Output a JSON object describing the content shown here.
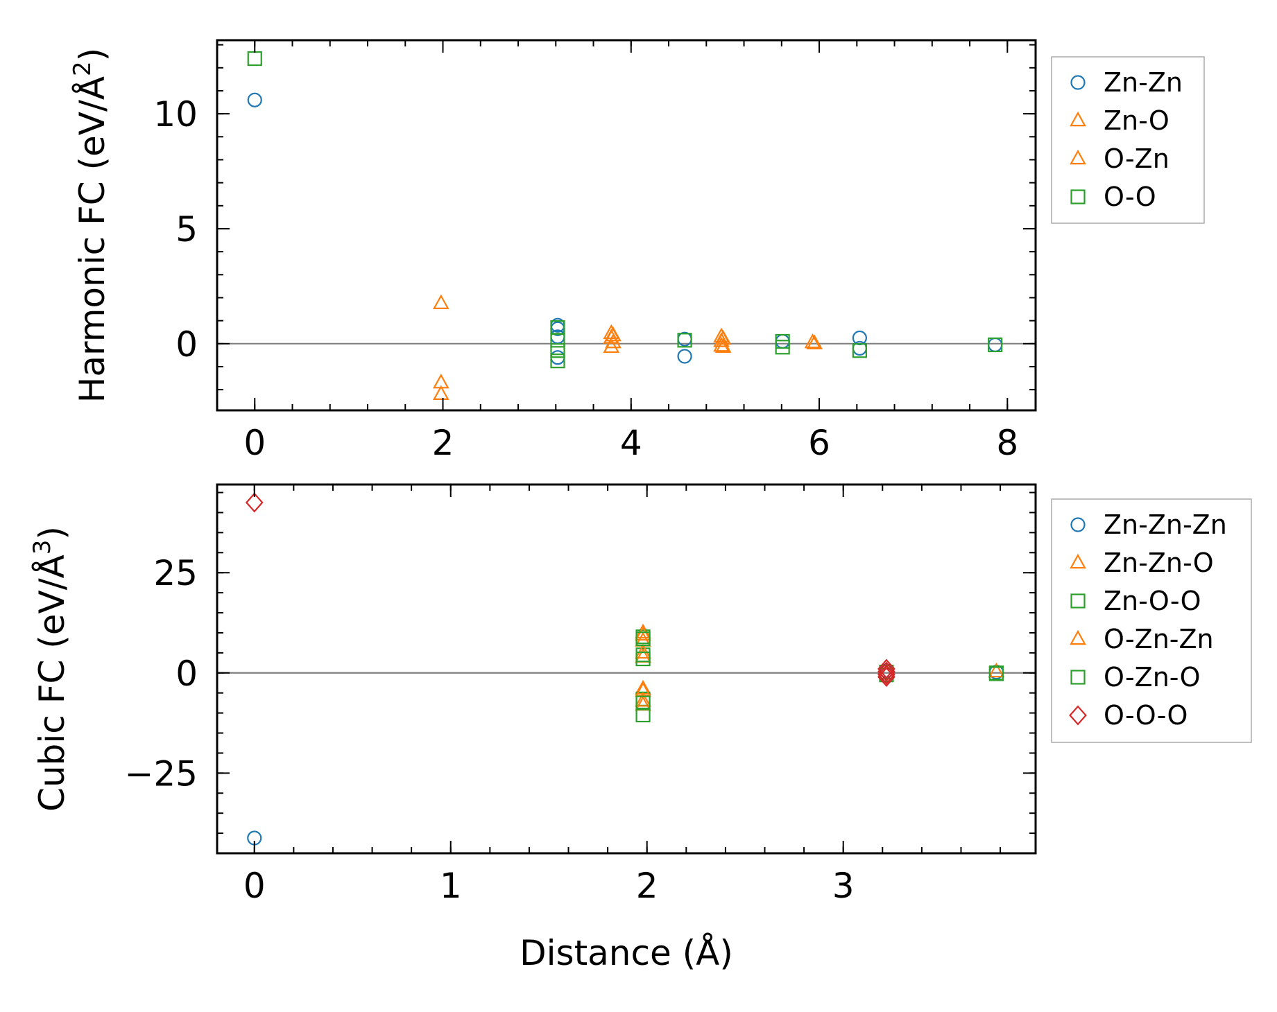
{
  "chart_data": [
    {
      "type": "scatter",
      "ylabel": "Harmonic FC (eV/Å²)",
      "ylabel_main": "Harmonic FC (eV/Å",
      "ylabel_sup": "2",
      "ylabel_tail": ")",
      "xlabel": "",
      "xlim": [
        -0.4,
        8.3
      ],
      "ylim": [
        -2.9,
        13.2
      ],
      "xticks": [
        0,
        2,
        4,
        6,
        8
      ],
      "xtick_labels": [
        "0",
        "2",
        "4",
        "6",
        "8"
      ],
      "yticks": [
        0,
        5,
        10
      ],
      "ytick_labels": [
        "0",
        "5",
        "10"
      ],
      "x_minor_step": 0.4,
      "y_minor_step": 1,
      "zero_line": true,
      "legend": "outside-right",
      "series": [
        {
          "name": "Zn-Zn",
          "marker": "circle",
          "color": "#1f77b4",
          "points": [
            [
              0,
              10.6
            ],
            [
              3.22,
              0.8
            ],
            [
              3.22,
              0.65
            ],
            [
              3.22,
              0.3
            ],
            [
              3.22,
              -0.6
            ],
            [
              4.57,
              0.2
            ],
            [
              4.57,
              -0.55
            ],
            [
              5.61,
              0.1
            ],
            [
              6.43,
              0.25
            ],
            [
              6.43,
              -0.2
            ],
            [
              7.87,
              -0.05
            ]
          ]
        },
        {
          "name": "Zn-O",
          "marker": "triangle",
          "color": "#ff7f0e",
          "points": [
            [
              1.98,
              1.75
            ],
            [
              1.98,
              -1.7
            ],
            [
              1.98,
              -2.2
            ],
            [
              3.79,
              0.45
            ],
            [
              3.79,
              0.25
            ],
            [
              3.79,
              -0.15
            ],
            [
              4.96,
              0.3
            ],
            [
              4.96,
              0.1
            ],
            [
              4.96,
              -0.1
            ],
            [
              5.93,
              0.05
            ]
          ]
        },
        {
          "name": "O-Zn",
          "marker": "triangle",
          "color": "#ff7f0e",
          "points": [
            [
              3.81,
              0.35
            ],
            [
              3.81,
              0.05
            ],
            [
              4.98,
              0.2
            ],
            [
              4.98,
              -0.15
            ],
            [
              5.95,
              0.0
            ]
          ]
        },
        {
          "name": "O-O",
          "marker": "square",
          "color": "#2ca02c",
          "points": [
            [
              0,
              12.4
            ],
            [
              3.22,
              0.7
            ],
            [
              3.22,
              0.15
            ],
            [
              3.22,
              -0.3
            ],
            [
              3.22,
              -0.75
            ],
            [
              4.57,
              0.15
            ],
            [
              5.61,
              0.1
            ],
            [
              5.61,
              -0.15
            ],
            [
              6.43,
              -0.3
            ],
            [
              7.87,
              -0.05
            ]
          ]
        }
      ]
    },
    {
      "type": "scatter",
      "ylabel": "Cubic FC (eV/Å³)",
      "ylabel_main": "Cubic FC (eV/Å",
      "ylabel_sup": "3",
      "ylabel_tail": ")",
      "xlabel": "Distance (Å)",
      "xlim": [
        -0.19,
        3.98
      ],
      "ylim": [
        -45,
        47
      ],
      "xticks": [
        0,
        1,
        2,
        3
      ],
      "xtick_labels": [
        "0",
        "1",
        "2",
        "3"
      ],
      "yticks": [
        -25,
        0,
        25
      ],
      "ytick_labels": [
        "−25",
        "0",
        "25"
      ],
      "x_minor_step": 0.2,
      "y_minor_step": 5,
      "zero_line": true,
      "legend": "outside-right",
      "series": [
        {
          "name": "Zn-Zn-Zn",
          "marker": "circle",
          "color": "#1f77b4",
          "points": [
            [
              0,
              -41.2
            ],
            [
              3.22,
              0.5
            ],
            [
              3.22,
              -0.5
            ],
            [
              3.78,
              0.2
            ]
          ]
        },
        {
          "name": "Zn-Zn-O",
          "marker": "triangle",
          "color": "#ff7f0e",
          "points": [
            [
              1.98,
              10
            ],
            [
              1.98,
              8
            ],
            [
              1.98,
              4
            ],
            [
              1.98,
              -4
            ],
            [
              1.98,
              -8
            ],
            [
              3.78,
              0.3
            ]
          ]
        },
        {
          "name": "Zn-O-O",
          "marker": "square",
          "color": "#2ca02c",
          "points": [
            [
              1.98,
              9
            ],
            [
              1.98,
              4.5
            ],
            [
              1.98,
              -6.5
            ],
            [
              1.98,
              -10.5
            ],
            [
              3.22,
              0.2
            ],
            [
              3.78,
              0.0
            ]
          ]
        },
        {
          "name": "O-Zn-Zn",
          "marker": "triangle",
          "color": "#ff7f0e",
          "points": [
            [
              1.98,
              9.5
            ],
            [
              1.98,
              5
            ],
            [
              1.98,
              -4.5
            ],
            [
              1.98,
              -7
            ]
          ]
        },
        {
          "name": "O-Zn-O",
          "marker": "square",
          "color": "#2ca02c",
          "points": [
            [
              1.98,
              8.5
            ],
            [
              1.98,
              3.5
            ],
            [
              1.98,
              -7.5
            ],
            [
              3.22,
              -0.5
            ],
            [
              3.78,
              -0.2
            ]
          ]
        },
        {
          "name": "O-O-O",
          "marker": "diamond",
          "color": "#d62728",
          "points": [
            [
              0,
              42.5
            ],
            [
              3.22,
              1.0
            ],
            [
              3.22,
              0.3
            ],
            [
              3.22,
              -0.4
            ],
            [
              3.22,
              -1.0
            ]
          ]
        }
      ]
    }
  ]
}
